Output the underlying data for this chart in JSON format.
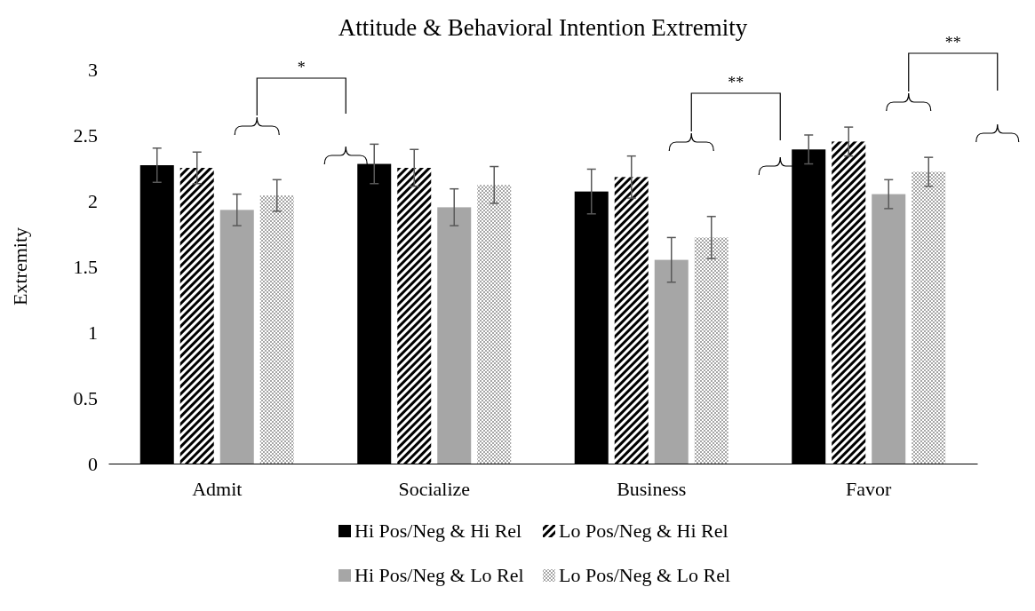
{
  "chart_data": {
    "type": "bar",
    "title": "Attitude & Behavioral Intention Extremity",
    "ylabel": "Extremity",
    "categories": [
      "Admit",
      "Socialize",
      "Business",
      "Favor"
    ],
    "series": [
      {
        "name": "Hi Pos/Neg & Hi Rel",
        "color": "#000000",
        "values": [
          2.27,
          2.28,
          2.07,
          2.39
        ],
        "errors": [
          0.13,
          0.15,
          0.17,
          0.11
        ]
      },
      {
        "name": "Lo Pos/Neg & Hi Rel",
        "color": "#000000",
        "values": [
          2.25,
          2.25,
          2.18,
          2.45
        ],
        "errors": [
          0.12,
          0.14,
          0.16,
          0.11
        ]
      },
      {
        "name": "Hi Pos/Neg & Lo Rel",
        "color": "#a6a6a6",
        "values": [
          1.93,
          1.95,
          1.55,
          2.05
        ],
        "errors": [
          0.12,
          0.14,
          0.17,
          0.11
        ]
      },
      {
        "name": "Lo Pos/Neg & Lo Rel",
        "color": "#a6a6a6",
        "values": [
          2.04,
          2.12,
          1.72,
          2.22
        ],
        "errors": [
          0.12,
          0.14,
          0.16,
          0.11
        ]
      }
    ],
    "ylim": [
      0,
      3
    ],
    "yticks": [
      0,
      0.5,
      1,
      1.5,
      2,
      2.5,
      3
    ],
    "grid": false,
    "legend": "bottom",
    "annotations": [
      "*",
      "**",
      "**"
    ]
  }
}
